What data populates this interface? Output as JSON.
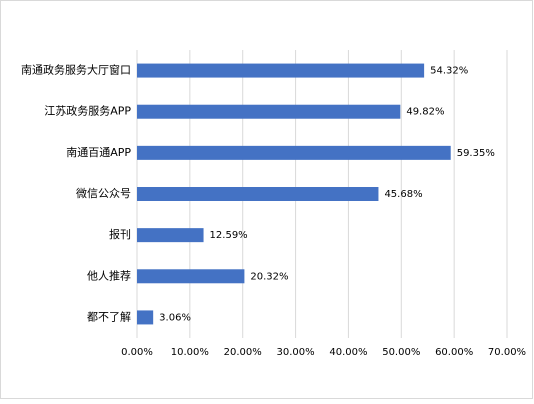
{
  "chart_data": {
    "type": "hbar",
    "categories": [
      "南通政务服务大厅窗口",
      "江苏政务服务APP",
      "南通百通APP",
      "微信公众号",
      "报刊",
      "他人推荐",
      "都不了解"
    ],
    "values": [
      54.32,
      49.82,
      59.35,
      45.68,
      12.59,
      20.32,
      3.06
    ],
    "value_labels": [
      "54.32%",
      "49.82%",
      "59.35%",
      "45.68%",
      "12.59%",
      "20.32%",
      "3.06%"
    ],
    "color": "#4472c4",
    "xlim": [
      0,
      70
    ],
    "xticks": [
      {
        "value": 0,
        "label": "0.00%"
      },
      {
        "value": 10,
        "label": "10.00%"
      },
      {
        "value": 20,
        "label": "20.00%"
      },
      {
        "value": 30,
        "label": "30.00%"
      },
      {
        "value": 40,
        "label": "40.00%"
      },
      {
        "value": 50,
        "label": "50.00%"
      },
      {
        "value": 60,
        "label": "60.00%"
      },
      {
        "value": 70,
        "label": "70.00%"
      }
    ],
    "grid": true
  }
}
